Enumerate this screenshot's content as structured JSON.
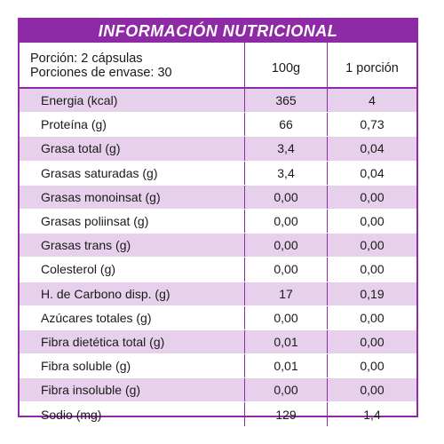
{
  "title": "INFORMACIÓN NUTRICIONAL",
  "header": {
    "portion_line": "Porción: 2 cápsulas",
    "servings_line": "Porciones de envase: 30",
    "col_100g": "100g",
    "col_portion": "1 porción"
  },
  "rows": [
    {
      "label": "Energia (kcal)",
      "v100": "365",
      "vpor": "4"
    },
    {
      "label": "Proteína (g)",
      "v100": "66",
      "vpor": "0,73"
    },
    {
      "label": "Grasa total (g)",
      "v100": "3,4",
      "vpor": "0,04"
    },
    {
      "label": "Grasas saturadas (g)",
      "v100": "3,4",
      "vpor": "0,04"
    },
    {
      "label": "Grasas monoinsat (g)",
      "v100": "0,00",
      "vpor": "0,00"
    },
    {
      "label": "Grasas poliinsat (g)",
      "v100": "0,00",
      "vpor": "0,00"
    },
    {
      "label": "Grasas trans (g)",
      "v100": "0,00",
      "vpor": "0,00"
    },
    {
      "label": "Colesterol (g)",
      "v100": "0,00",
      "vpor": "0,00"
    },
    {
      "label": "H. de Carbono disp. (g)",
      "v100": "17",
      "vpor": "0,19"
    },
    {
      "label": "Azúcares totales (g)",
      "v100": "0,00",
      "vpor": "0,00"
    },
    {
      "label": "Fibra dietética total (g)",
      "v100": "0,01",
      "vpor": "0,00"
    },
    {
      "label": "Fibra soluble (g)",
      "v100": "0,01",
      "vpor": "0,00"
    },
    {
      "label": "Fibra insoluble (g)",
      "v100": "0,00",
      "vpor": "0,00"
    },
    {
      "label": "Sodio (mg)",
      "v100": "129",
      "vpor": "1,4"
    }
  ],
  "colors": {
    "accent": "#8e2aa6",
    "row_shade": "#e6d0ec"
  }
}
